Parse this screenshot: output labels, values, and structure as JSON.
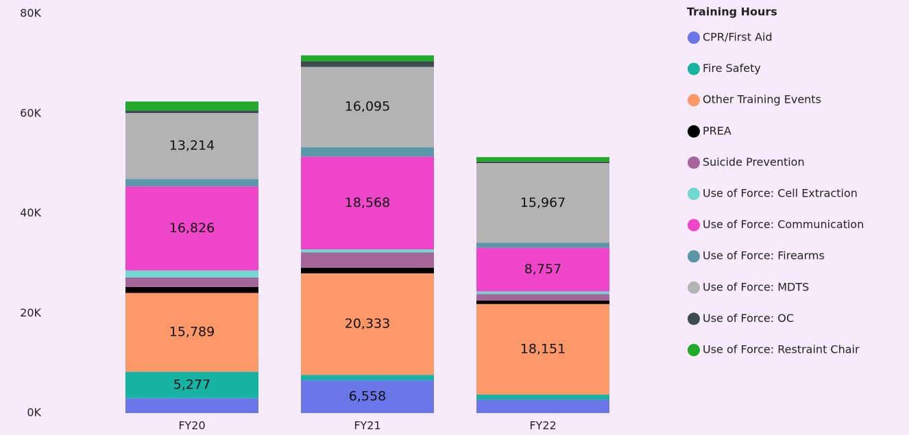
{
  "chart_data": {
    "type": "stacked_bar",
    "legend_title": "Training Hours",
    "categories": [
      "FY20",
      "FY21",
      "FY22"
    ],
    "series": [
      {
        "name": "CPR/First Aid",
        "color": "#6b76e8",
        "values": [
          3000,
          6558,
          2700
        ],
        "value_labels": [
          null,
          "6,558",
          null
        ]
      },
      {
        "name": "Fire Safety",
        "color": "#17b3a3",
        "values": [
          5277,
          1100,
          1000
        ],
        "value_labels": [
          "5,277",
          null,
          null
        ]
      },
      {
        "name": "Other Training Events",
        "color": "#fd9868",
        "values": [
          15789,
          20333,
          18151
        ],
        "value_labels": [
          "15,789",
          "20,333",
          "18,151"
        ]
      },
      {
        "name": "PREA",
        "color": "#000000",
        "values": [
          1200,
          1100,
          700
        ],
        "value_labels": [
          null,
          null,
          null
        ]
      },
      {
        "name": "Suicide Prevention",
        "color": "#a4669a",
        "values": [
          1900,
          3100,
          1300
        ],
        "value_labels": [
          null,
          null,
          null
        ]
      },
      {
        "name": "Use of Force: Cell Extraction",
        "color": "#6fd8cf",
        "values": [
          1400,
          600,
          500
        ],
        "value_labels": [
          null,
          null,
          null
        ]
      },
      {
        "name": "Use of Force: Communication",
        "color": "#f046c9",
        "values": [
          16826,
          18568,
          8757
        ],
        "value_labels": [
          "16,826",
          "18,568",
          "8,757"
        ]
      },
      {
        "name": "Use of Force: Firearms",
        "color": "#5b97a6",
        "values": [
          1500,
          1900,
          1000
        ],
        "value_labels": [
          null,
          null,
          null
        ]
      },
      {
        "name": "Use of Force: MDTS",
        "color": "#b3b3b3",
        "values": [
          13214,
          16095,
          15967
        ],
        "value_labels": [
          "13,214",
          "16,095",
          "15,967"
        ]
      },
      {
        "name": "Use of Force: OC",
        "color": "#3d4a4f",
        "values": [
          500,
          1100,
          300
        ],
        "value_labels": [
          null,
          null,
          null
        ]
      },
      {
        "name": "Use of Force: Restraint Chair",
        "color": "#22aa2a",
        "values": [
          1800,
          1200,
          900
        ],
        "value_labels": [
          null,
          null,
          null
        ]
      }
    ],
    "ylim": [
      0,
      80000
    ],
    "yticks": [
      {
        "value": 0,
        "label": "0K"
      },
      {
        "value": 20000,
        "label": "20K"
      },
      {
        "value": 40000,
        "label": "40K"
      },
      {
        "value": 60000,
        "label": "60K"
      },
      {
        "value": 80000,
        "label": "80K"
      }
    ]
  }
}
